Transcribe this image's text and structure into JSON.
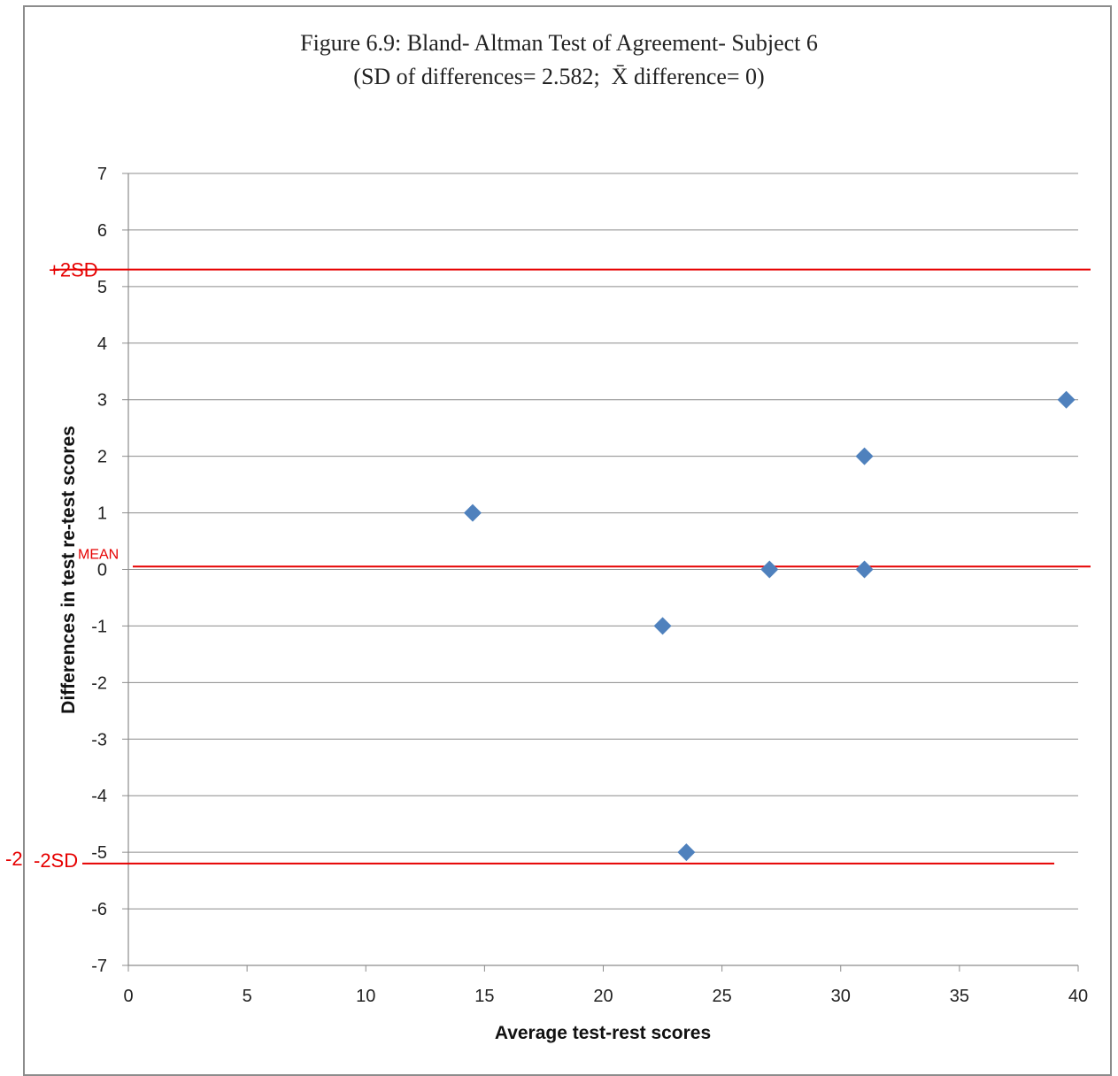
{
  "chart_data": {
    "type": "scatter",
    "title": "Figure 6.9: Bland- Altman Test of Agreement- Subject 6",
    "subtitle": "(SD of differences= 2.582;  X̄ difference= 0)",
    "xlabel": "Average test-rest scores",
    "ylabel": "Differences in test re-test scores",
    "xlim": [
      0,
      40
    ],
    "ylim": [
      -7,
      7
    ],
    "x_ticks": [
      "0",
      "5",
      "10",
      "15",
      "20",
      "25",
      "30",
      "35",
      "40"
    ],
    "y_ticks": [
      "7",
      "6",
      "5",
      "4",
      "3",
      "2",
      "1",
      "0",
      "-1",
      "-2",
      "-3",
      "-4",
      "-5",
      "-6",
      "-7"
    ],
    "grid": "horizontal",
    "points": [
      {
        "x": 14.5,
        "y": 1
      },
      {
        "x": 22.5,
        "y": -1
      },
      {
        "x": 23.5,
        "y": -5
      },
      {
        "x": 27,
        "y": 0
      },
      {
        "x": 31,
        "y": 2
      },
      {
        "x": 31,
        "y": 0
      },
      {
        "x": 39.5,
        "y": 3
      }
    ],
    "marker_color": "#4f81bd",
    "reference_lines": [
      {
        "label": "+2SD",
        "y": 5.3
      },
      {
        "label": "MEAN",
        "y": 0.05
      },
      {
        "label": "-2SD",
        "y": -5.2
      }
    ],
    "reference_color": "#e60000",
    "stray_label": "-2"
  }
}
